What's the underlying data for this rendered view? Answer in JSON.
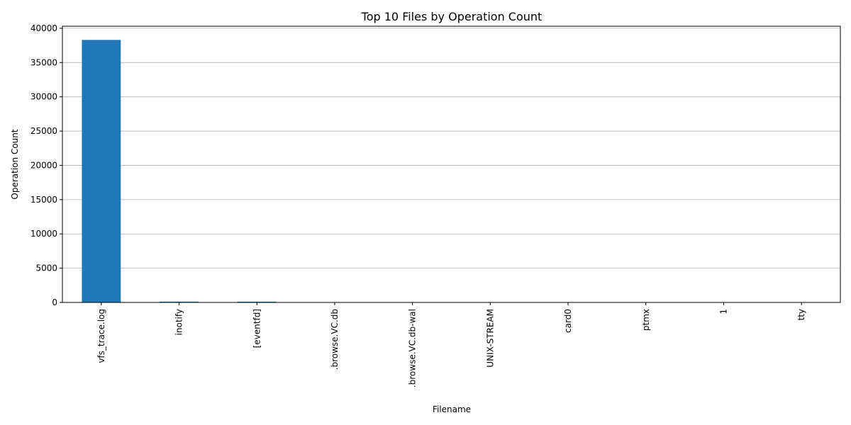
{
  "chart_data": {
    "type": "bar",
    "title": "Top 10 Files by Operation Count",
    "xlabel": "Filename",
    "ylabel": "Operation Count",
    "categories": [
      "vfs_trace.log",
      "inotify",
      "[eventfd]",
      ".browse.VC.db",
      ".browse.VC.db-wal",
      "UNIX-STREAM",
      "card0",
      "ptmx",
      "1",
      "tty"
    ],
    "values": [
      38300,
      120,
      110,
      30,
      25,
      20,
      15,
      12,
      10,
      8
    ],
    "ylim": [
      0,
      40300
    ],
    "yticks": [
      0,
      5000,
      10000,
      15000,
      20000,
      25000,
      30000,
      35000,
      40000
    ],
    "grid": "y",
    "bar_color": "#1f77b4"
  }
}
